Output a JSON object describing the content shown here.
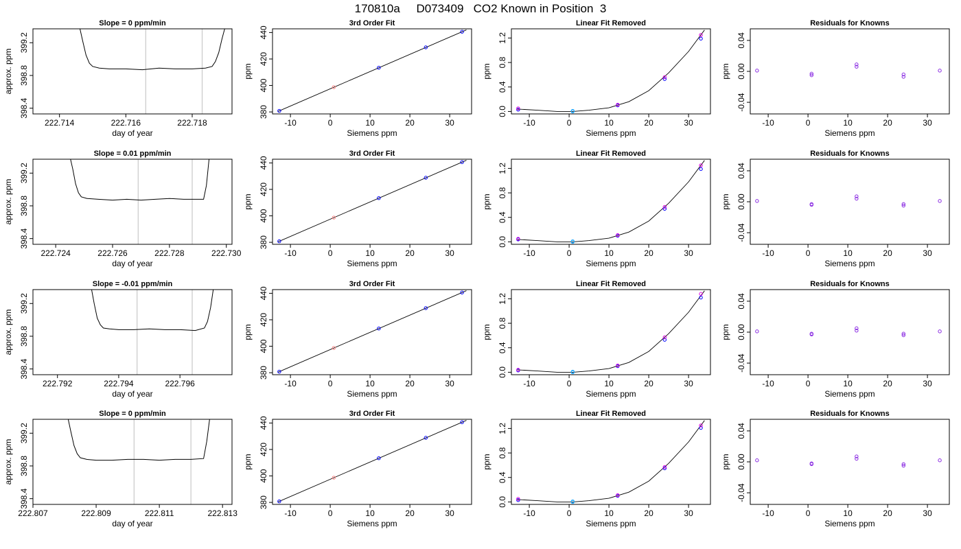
{
  "page_title": "170810a     D073409   CO2 Known in Position  3",
  "colors": {
    "trace": "#000000",
    "gridline": "#c8c8c8",
    "mark_blue": "#0000ff",
    "mark_magenta": "#dd00dd",
    "mark_cyan": "#22aaff",
    "mark_purple": "#8a2be2",
    "mark_red": "#ff3030",
    "mark_pink": "#ff8080"
  },
  "chart_data": [
    {
      "type": "line",
      "panel": "trace",
      "row": 0,
      "title": "Slope =  0  ppm/min",
      "xlabel": "day of year",
      "ylabel": "approx. ppm",
      "xlim": [
        222.7132,
        222.7192
      ],
      "ylim": [
        398.33,
        399.37
      ],
      "xticks": [
        222.714,
        222.716,
        222.718
      ],
      "xtick_labels": [
        "222.714",
        "222.716",
        "222.718"
      ],
      "yticks": [
        398.4,
        398.8,
        399.2
      ],
      "ytick_labels": [
        "398.4",
        "398.8",
        "399.2"
      ],
      "vlines": [
        222.7166,
        222.7183
      ],
      "x": [
        222.7146,
        222.7147,
        222.7148,
        222.7149,
        222.715,
        222.7152,
        222.7155,
        222.716,
        222.7165,
        222.717,
        222.7175,
        222.718,
        222.7184,
        222.7186,
        222.7187,
        222.7188,
        222.7189,
        222.719
      ],
      "y": [
        399.4,
        399.22,
        399.05,
        398.95,
        398.91,
        398.89,
        398.88,
        398.88,
        398.87,
        398.89,
        398.88,
        398.88,
        398.89,
        398.91,
        398.97,
        399.08,
        399.25,
        399.4
      ]
    },
    {
      "type": "scatter",
      "panel": "fit",
      "row": 0,
      "title": "3rd Order Fit",
      "xlabel": "Siemens ppm",
      "ylabel": "ppm",
      "xlim": [
        -14.5,
        35.5
      ],
      "ylim": [
        378.5,
        442.8
      ],
      "xticks": [
        -10,
        0,
        10,
        20,
        30
      ],
      "xtick_labels": [
        "-10",
        "0",
        "10",
        "20",
        "30"
      ],
      "yticks": [
        380,
        400,
        420,
        440
      ],
      "ytick_labels": [
        "380",
        "400",
        "420",
        "440"
      ],
      "line_x": [
        -13.2,
        34.2
      ],
      "line_y": [
        380.3,
        442.0
      ],
      "points_x": [
        -12.8,
        0.9,
        12.2,
        24.0,
        33.1
      ],
      "points_y": [
        380.8,
        398.7,
        413.4,
        428.8,
        440.6
      ]
    },
    {
      "type": "scatter",
      "panel": "linear",
      "row": 0,
      "title": "Linear Fit Removed",
      "xlabel": "Siemens ppm",
      "ylabel": "ppm",
      "xlim": [
        -14.5,
        35.5
      ],
      "ylim": [
        -0.04,
        1.35
      ],
      "xticks": [
        -10,
        0,
        10,
        20,
        30
      ],
      "xtick_labels": [
        "-10",
        "0",
        "10",
        "20",
        "30"
      ],
      "yticks": [
        0.0,
        0.4,
        0.8,
        1.2
      ],
      "ytick_labels": [
        "0.0",
        "0.4",
        "0.8",
        "1.2"
      ],
      "curve_x": [
        -13,
        -8,
        -3,
        1,
        5,
        10,
        15,
        20,
        25,
        30,
        34
      ],
      "curve_y": [
        0.04,
        0.02,
        0.0,
        0.0,
        0.02,
        0.06,
        0.16,
        0.34,
        0.63,
        0.98,
        1.33
      ],
      "points_x": [
        -12.8,
        -12.8,
        0.9,
        0.9,
        12.2,
        12.2,
        24.0,
        24.0,
        33.1,
        33.1
      ],
      "points_y": [
        0.03,
        0.05,
        0.0,
        0.01,
        0.1,
        0.11,
        0.53,
        0.56,
        1.19,
        1.25
      ],
      "point_colors": [
        "blue",
        "magenta",
        "cyan",
        "cyan",
        "blue",
        "magenta",
        "blue",
        "magenta",
        "blue",
        "magenta"
      ]
    },
    {
      "type": "scatter",
      "panel": "resid",
      "row": 0,
      "title": "Residuals for Knowns",
      "xlabel": "Siemens ppm",
      "ylabel": "ppm",
      "xlim": [
        -14.5,
        35.5
      ],
      "ylim": [
        -0.055,
        0.055
      ],
      "xticks": [
        -10,
        0,
        10,
        20,
        30
      ],
      "xtick_labels": [
        "-10",
        "0",
        "10",
        "20",
        "30"
      ],
      "yticks": [
        -0.04,
        0.0,
        0.04
      ],
      "ytick_labels": [
        "-0.04",
        "0.00",
        "0.04"
      ],
      "points_x": [
        -12.8,
        0.9,
        0.9,
        12.2,
        12.2,
        24.0,
        24.0,
        33.1
      ],
      "points_y": [
        0.001,
        -0.003,
        -0.005,
        0.006,
        0.009,
        -0.004,
        -0.007,
        0.001
      ]
    },
    {
      "type": "line",
      "panel": "trace",
      "row": 1,
      "title": "Slope =  0.01  ppm/min",
      "xlabel": "day of year",
      "ylabel": "approx. ppm",
      "xlim": [
        222.7232,
        222.7302
      ],
      "ylim": [
        398.33,
        399.37
      ],
      "xticks": [
        222.724,
        222.726,
        222.728,
        222.73
      ],
      "xtick_labels": [
        "222.724",
        "222.726",
        "222.728",
        "222.730"
      ],
      "yticks": [
        398.4,
        398.8,
        399.2
      ],
      "ytick_labels": [
        "398.4",
        "398.8",
        "399.2"
      ],
      "vlines": [
        222.7269,
        222.7288
      ],
      "x": [
        222.7245,
        222.7246,
        222.7247,
        222.7248,
        222.7249,
        222.7251,
        222.7255,
        222.726,
        222.7265,
        222.727,
        222.7275,
        222.728,
        222.7285,
        222.729,
        222.7292,
        222.7293,
        222.7294
      ],
      "y": [
        399.4,
        399.25,
        399.07,
        398.96,
        398.91,
        398.89,
        398.88,
        398.87,
        398.88,
        398.87,
        398.88,
        398.89,
        398.88,
        398.88,
        398.88,
        399.05,
        399.4
      ]
    },
    {
      "type": "scatter",
      "panel": "fit",
      "row": 1,
      "title": "3rd Order Fit",
      "xlabel": "Siemens ppm",
      "ylabel": "ppm",
      "xlim": [
        -14.5,
        35.5
      ],
      "ylim": [
        378.5,
        442.8
      ],
      "xticks": [
        -10,
        0,
        10,
        20,
        30
      ],
      "xtick_labels": [
        "-10",
        "0",
        "10",
        "20",
        "30"
      ],
      "yticks": [
        380,
        400,
        420,
        440
      ],
      "ytick_labels": [
        "380",
        "400",
        "420",
        "440"
      ],
      "line_x": [
        -13.2,
        34.2
      ],
      "line_y": [
        380.3,
        442.0
      ],
      "points_x": [
        -12.8,
        0.9,
        12.2,
        24.0,
        33.1
      ],
      "points_y": [
        380.8,
        398.7,
        413.4,
        428.8,
        440.6
      ]
    },
    {
      "type": "scatter",
      "panel": "linear",
      "row": 1,
      "title": "Linear Fit Removed",
      "xlabel": "Siemens ppm",
      "ylabel": "ppm",
      "xlim": [
        -14.5,
        35.5
      ],
      "ylim": [
        -0.04,
        1.35
      ],
      "xticks": [
        -10,
        0,
        10,
        20,
        30
      ],
      "xtick_labels": [
        "-10",
        "0",
        "10",
        "20",
        "30"
      ],
      "yticks": [
        0.0,
        0.4,
        0.8,
        1.2
      ],
      "ytick_labels": [
        "0.0",
        "0.4",
        "0.8",
        "1.2"
      ],
      "curve_x": [
        -13,
        -8,
        -3,
        1,
        5,
        10,
        15,
        20,
        25,
        30,
        34
      ],
      "curve_y": [
        0.04,
        0.02,
        0.0,
        0.0,
        0.02,
        0.06,
        0.16,
        0.34,
        0.63,
        0.98,
        1.33
      ],
      "points_x": [
        -12.8,
        -12.8,
        0.9,
        0.9,
        12.2,
        12.2,
        24.0,
        24.0,
        33.1,
        33.1
      ],
      "points_y": [
        0.04,
        0.05,
        0.0,
        0.01,
        0.1,
        0.11,
        0.54,
        0.57,
        1.19,
        1.25
      ],
      "point_colors": [
        "blue",
        "magenta",
        "cyan",
        "cyan",
        "blue",
        "magenta",
        "blue",
        "magenta",
        "blue",
        "magenta"
      ]
    },
    {
      "type": "scatter",
      "panel": "resid",
      "row": 1,
      "title": "Residuals for Knowns",
      "xlabel": "Siemens ppm",
      "ylabel": "ppm",
      "xlim": [
        -14.5,
        35.5
      ],
      "ylim": [
        -0.055,
        0.055
      ],
      "xticks": [
        -10,
        0,
        10,
        20,
        30
      ],
      "xtick_labels": [
        "-10",
        "0",
        "10",
        "20",
        "30"
      ],
      "yticks": [
        -0.04,
        0.0,
        0.04
      ],
      "ytick_labels": [
        "-0.04",
        "0.00",
        "0.04"
      ],
      "points_x": [
        -12.8,
        0.9,
        0.9,
        12.2,
        12.2,
        24.0,
        24.0,
        33.1
      ],
      "points_y": [
        0.001,
        -0.003,
        -0.004,
        0.004,
        0.007,
        -0.003,
        -0.005,
        0.001
      ]
    },
    {
      "type": "line",
      "panel": "trace",
      "row": 2,
      "title": "Slope =  -0.01  ppm/min",
      "xlabel": "day of year",
      "ylabel": "approx. ppm",
      "xlim": [
        222.7912,
        222.7977
      ],
      "ylim": [
        398.33,
        399.37
      ],
      "xticks": [
        222.792,
        222.794,
        222.796
      ],
      "xtick_labels": [
        "222.792",
        "222.794",
        "222.796"
      ],
      "yticks": [
        398.4,
        398.8,
        399.2
      ],
      "ytick_labels": [
        "398.4",
        "398.8",
        "399.2"
      ],
      "vlines": [
        222.7946,
        222.7964
      ],
      "x": [
        222.7931,
        222.7932,
        222.7933,
        222.7934,
        222.7935,
        222.7937,
        222.794,
        222.7945,
        222.795,
        222.7955,
        222.796,
        222.7965,
        222.7968,
        222.7969,
        222.797,
        222.7971
      ],
      "y": [
        399.4,
        399.2,
        399.02,
        398.94,
        398.9,
        398.89,
        398.88,
        398.88,
        398.89,
        398.88,
        398.88,
        398.87,
        398.9,
        398.98,
        399.15,
        399.4
      ]
    },
    {
      "type": "scatter",
      "panel": "fit",
      "row": 2,
      "title": "3rd Order Fit",
      "xlabel": "Siemens ppm",
      "ylabel": "ppm",
      "xlim": [
        -14.5,
        35.5
      ],
      "ylim": [
        378.5,
        442.8
      ],
      "xticks": [
        -10,
        0,
        10,
        20,
        30
      ],
      "xtick_labels": [
        "-10",
        "0",
        "10",
        "20",
        "30"
      ],
      "yticks": [
        380,
        400,
        420,
        440
      ],
      "ytick_labels": [
        "380",
        "400",
        "420",
        "440"
      ],
      "line_x": [
        -13.2,
        34.2
      ],
      "line_y": [
        380.3,
        442.0
      ],
      "points_x": [
        -12.8,
        0.9,
        12.2,
        24.0,
        33.1
      ],
      "points_y": [
        380.8,
        398.7,
        413.4,
        428.8,
        440.6
      ]
    },
    {
      "type": "scatter",
      "panel": "linear",
      "row": 2,
      "title": "Linear Fit Removed",
      "xlabel": "Siemens ppm",
      "ylabel": "ppm",
      "xlim": [
        -14.5,
        35.5
      ],
      "ylim": [
        -0.04,
        1.35
      ],
      "xticks": [
        -10,
        0,
        10,
        20,
        30
      ],
      "xtick_labels": [
        "-10",
        "0",
        "10",
        "20",
        "30"
      ],
      "yticks": [
        0.0,
        0.4,
        0.8,
        1.2
      ],
      "ytick_labels": [
        "0.0",
        "0.4",
        "0.8",
        "1.2"
      ],
      "curve_x": [
        -13,
        -8,
        -3,
        1,
        5,
        10,
        15,
        20,
        25,
        30,
        34
      ],
      "curve_y": [
        0.04,
        0.02,
        0.0,
        0.0,
        0.02,
        0.06,
        0.16,
        0.34,
        0.63,
        0.98,
        1.33
      ],
      "points_x": [
        -12.8,
        -12.8,
        0.9,
        0.9,
        12.2,
        12.2,
        24.0,
        24.0,
        33.1,
        33.1
      ],
      "points_y": [
        0.03,
        0.04,
        0.0,
        0.01,
        0.1,
        0.11,
        0.53,
        0.57,
        1.22,
        1.28
      ],
      "point_colors": [
        "blue",
        "magenta",
        "cyan",
        "cyan",
        "blue",
        "magenta",
        "blue",
        "magenta",
        "blue",
        "magenta"
      ]
    },
    {
      "type": "scatter",
      "panel": "resid",
      "row": 2,
      "title": "Residuals for Knowns",
      "xlabel": "Siemens ppm",
      "ylabel": "ppm",
      "xlim": [
        -14.5,
        35.5
      ],
      "ylim": [
        -0.055,
        0.055
      ],
      "xticks": [
        -10,
        0,
        10,
        20,
        30
      ],
      "xtick_labels": [
        "-10",
        "0",
        "10",
        "20",
        "30"
      ],
      "yticks": [
        -0.04,
        0.0,
        0.04
      ],
      "ytick_labels": [
        "-0.04",
        "0.00",
        "0.04"
      ],
      "points_x": [
        -12.8,
        0.9,
        0.9,
        12.2,
        12.2,
        24.0,
        24.0,
        33.1
      ],
      "points_y": [
        0.001,
        -0.002,
        -0.003,
        0.002,
        0.005,
        -0.002,
        -0.004,
        0.001
      ]
    },
    {
      "type": "line",
      "panel": "trace",
      "row": 3,
      "title": "Slope =  0  ppm/min",
      "xlabel": "day of year",
      "ylabel": "approx. ppm",
      "xlim": [
        222.807,
        222.8133
      ],
      "ylim": [
        398.33,
        399.37
      ],
      "xticks": [
        222.807,
        222.809,
        222.811,
        222.813
      ],
      "xtick_labels": [
        "222.807",
        "222.809",
        "222.811",
        "222.813"
      ],
      "yticks": [
        398.4,
        398.8,
        399.2
      ],
      "ytick_labels": [
        "398.4",
        "398.8",
        "399.2"
      ],
      "vlines": [
        222.8102,
        222.812
      ],
      "x": [
        222.8081,
        222.8082,
        222.8083,
        222.8084,
        222.8085,
        222.8087,
        222.809,
        222.8095,
        222.81,
        222.8105,
        222.811,
        222.8115,
        222.812,
        222.8124,
        222.8125,
        222.8126
      ],
      "y": [
        399.4,
        399.22,
        399.05,
        398.95,
        398.9,
        398.88,
        398.87,
        398.87,
        398.88,
        398.88,
        398.87,
        398.88,
        398.88,
        398.89,
        399.1,
        399.4
      ]
    },
    {
      "type": "scatter",
      "panel": "fit",
      "row": 3,
      "title": "3rd Order Fit",
      "xlabel": "Siemens ppm",
      "ylabel": "ppm",
      "xlim": [
        -14.5,
        35.5
      ],
      "ylim": [
        378.5,
        442.8
      ],
      "xticks": [
        -10,
        0,
        10,
        20,
        30
      ],
      "xtick_labels": [
        "-10",
        "0",
        "10",
        "20",
        "30"
      ],
      "yticks": [
        380,
        400,
        420,
        440
      ],
      "ytick_labels": [
        "380",
        "400",
        "420",
        "440"
      ],
      "line_x": [
        -13.2,
        34.2
      ],
      "line_y": [
        380.3,
        442.0
      ],
      "points_x": [
        -12.8,
        0.9,
        12.2,
        24.0,
        33.1
      ],
      "points_y": [
        380.8,
        398.7,
        413.4,
        428.8,
        440.6
      ]
    },
    {
      "type": "scatter",
      "panel": "linear",
      "row": 3,
      "title": "Linear Fit Removed",
      "xlabel": "Siemens ppm",
      "ylabel": "ppm",
      "xlim": [
        -14.5,
        35.5
      ],
      "ylim": [
        -0.04,
        1.35
      ],
      "xticks": [
        -10,
        0,
        10,
        20,
        30
      ],
      "xtick_labels": [
        "-10",
        "0",
        "10",
        "20",
        "30"
      ],
      "yticks": [
        0.0,
        0.4,
        0.8,
        1.2
      ],
      "ytick_labels": [
        "0.0",
        "0.4",
        "0.8",
        "1.2"
      ],
      "curve_x": [
        -13,
        -8,
        -3,
        1,
        5,
        10,
        15,
        20,
        25,
        30,
        34
      ],
      "curve_y": [
        0.04,
        0.02,
        0.0,
        0.0,
        0.02,
        0.06,
        0.16,
        0.34,
        0.63,
        0.98,
        1.33
      ],
      "points_x": [
        -12.8,
        -12.8,
        0.9,
        0.9,
        12.2,
        12.2,
        24.0,
        24.0,
        33.1,
        33.1
      ],
      "points_y": [
        0.03,
        0.05,
        0.0,
        0.01,
        0.1,
        0.11,
        0.55,
        0.57,
        1.21,
        1.25
      ],
      "point_colors": [
        "blue",
        "magenta",
        "cyan",
        "cyan",
        "blue",
        "magenta",
        "blue",
        "magenta",
        "blue",
        "magenta"
      ]
    },
    {
      "type": "scatter",
      "panel": "resid",
      "row": 3,
      "title": "Residuals for Knowns",
      "xlabel": "Siemens ppm",
      "ylabel": "ppm",
      "xlim": [
        -14.5,
        35.5
      ],
      "ylim": [
        -0.055,
        0.055
      ],
      "xticks": [
        -10,
        0,
        10,
        20,
        30
      ],
      "xtick_labels": [
        "-10",
        "0",
        "10",
        "20",
        "30"
      ],
      "yticks": [
        -0.04,
        0.0,
        0.04
      ],
      "ytick_labels": [
        "-0.04",
        "0.00",
        "0.04"
      ],
      "points_x": [
        -12.8,
        0.9,
        0.9,
        12.2,
        12.2,
        24.0,
        24.0,
        33.1
      ],
      "points_y": [
        0.002,
        -0.002,
        -0.003,
        0.004,
        0.007,
        -0.003,
        -0.005,
        0.002
      ]
    }
  ]
}
